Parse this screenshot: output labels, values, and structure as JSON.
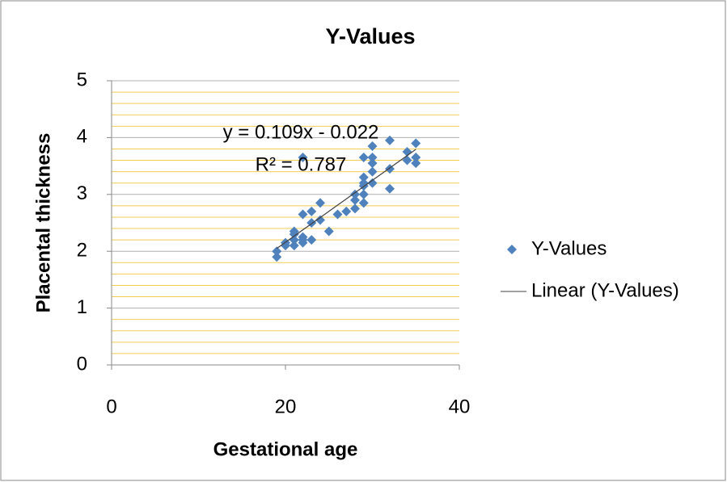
{
  "chart_data": {
    "type": "scatter",
    "title": "Y-Values",
    "xlabel": "Gestational age",
    "ylabel": "Placental thickness",
    "series": [
      {
        "name": "Y-Values",
        "color": "#4f81bd",
        "x": [
          19,
          19,
          20,
          20,
          21,
          21,
          21,
          21,
          22,
          22,
          22,
          22,
          22,
          23,
          23,
          23,
          24,
          24,
          25,
          26,
          27,
          28,
          28,
          28,
          29,
          29,
          29,
          29,
          29,
          29,
          30,
          30,
          30,
          30,
          30,
          32,
          32,
          32,
          34,
          34,
          35,
          35,
          35
        ],
        "values": [
          1.9,
          2.0,
          2.1,
          2.15,
          2.1,
          2.3,
          2.35,
          2.2,
          2.2,
          2.15,
          2.65,
          3.65,
          2.25,
          2.2,
          2.5,
          2.7,
          2.55,
          2.85,
          2.35,
          2.65,
          2.7,
          2.75,
          2.9,
          3.0,
          2.85,
          3.0,
          3.2,
          3.3,
          3.15,
          3.65,
          3.2,
          3.4,
          3.55,
          3.65,
          3.85,
          3.1,
          3.45,
          3.95,
          3.6,
          3.75,
          3.55,
          3.65,
          3.9
        ]
      }
    ],
    "trendline": {
      "name": "Linear (Y-Values)",
      "color": "#404040",
      "slope": 0.109,
      "intercept": -0.022,
      "xrange": [
        19,
        35
      ]
    },
    "annotations": [
      "y = 0.109x - 0.022",
      "R² = 0.787"
    ],
    "xlim": [
      0,
      40
    ],
    "xticks": [
      0,
      20,
      40
    ],
    "ylim": [
      0,
      5
    ],
    "yticks": [
      0,
      1,
      2,
      3,
      4,
      5
    ],
    "yminorticks": [
      0.2,
      0.4,
      0.6,
      0.8,
      1.2,
      1.4,
      1.6,
      1.8,
      2.2,
      2.4,
      2.6,
      2.8,
      3.2,
      3.4,
      3.6,
      3.8,
      4.2,
      4.4,
      4.6,
      4.8
    ],
    "grid": true,
    "legend": "right"
  }
}
